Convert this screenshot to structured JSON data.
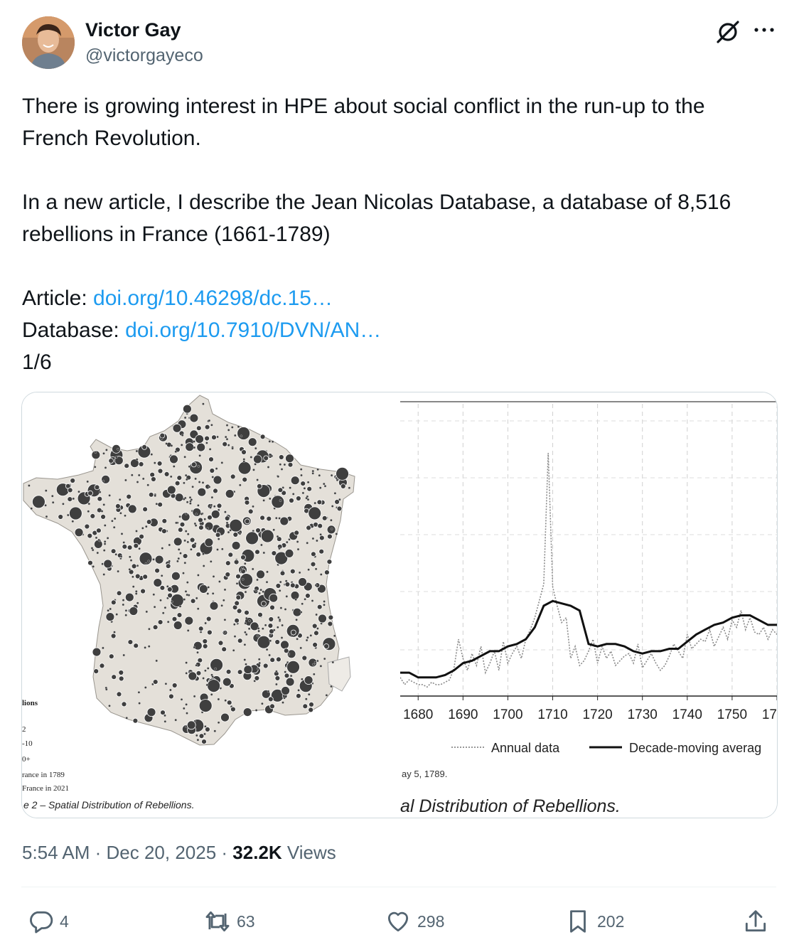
{
  "author": {
    "display_name": "Victor Gay",
    "handle": "@victorgayeco"
  },
  "tweet": {
    "line1": "There is growing interest in HPE about social conflict in the run-up to the French Revolution.",
    "line2": "In a new article, I describe the Jean Nicolas Database, a database of 8,516 rebellions in France (1661-1789)",
    "article_label": "Article: ",
    "article_link": "doi.org/10.46298/dc.15…",
    "database_label": "Database: ",
    "database_link": "doi.org/10.7910/DVN/AN…",
    "thread_count": "1/6"
  },
  "media": {
    "map": {
      "caption": "e 2 – Spatial Distribution of Rebellions.",
      "legend_title": "lions",
      "legend_items": [
        "2",
        "-10",
        "0+",
        "rance in 1789",
        "France in 2021"
      ]
    },
    "chart_caption": "al Distribution of Rebellions.",
    "chart_note": "ay 5, 1789."
  },
  "chart_data": {
    "type": "line",
    "title": "",
    "xlabel": "",
    "ylabel": "",
    "x_ticks": [
      "1680",
      "1690",
      "1700",
      "1710",
      "1720",
      "1730",
      "1740",
      "1750",
      "17"
    ],
    "xlim": [
      1676,
      1760
    ],
    "ylim": [
      0,
      100
    ],
    "grid": true,
    "legend": "bottom",
    "series": [
      {
        "name": "Annual data",
        "style": "dotted",
        "x": [
          1676,
          1677,
          1678,
          1679,
          1680,
          1681,
          1682,
          1683,
          1684,
          1685,
          1686,
          1687,
          1688,
          1689,
          1690,
          1691,
          1692,
          1693,
          1694,
          1695,
          1696,
          1697,
          1698,
          1699,
          1700,
          1701,
          1702,
          1703,
          1704,
          1705,
          1706,
          1707,
          1708,
          1709,
          1710,
          1711,
          1712,
          1713,
          1714,
          1715,
          1716,
          1717,
          1718,
          1719,
          1720,
          1721,
          1722,
          1723,
          1724,
          1725,
          1726,
          1727,
          1728,
          1729,
          1730,
          1731,
          1732,
          1733,
          1734,
          1735,
          1736,
          1737,
          1738,
          1739,
          1740,
          1741,
          1742,
          1743,
          1744,
          1745,
          1746,
          1747,
          1748,
          1749,
          1750,
          1751,
          1752,
          1753,
          1754,
          1755,
          1756,
          1757,
          1758,
          1759,
          1760
        ],
        "y": [
          6,
          3,
          5,
          4,
          3,
          3,
          2,
          4,
          3,
          3,
          4,
          5,
          10,
          22,
          14,
          9,
          16,
          11,
          19,
          8,
          12,
          17,
          9,
          21,
          12,
          16,
          19,
          14,
          22,
          26,
          31,
          38,
          45,
          100,
          44,
          36,
          29,
          31,
          14,
          19,
          11,
          13,
          17,
          22,
          12,
          19,
          14,
          17,
          11,
          13,
          15,
          16,
          12,
          20,
          10,
          13,
          16,
          12,
          9,
          11,
          15,
          20,
          17,
          14,
          24,
          18,
          20,
          22,
          21,
          26,
          19,
          23,
          27,
          22,
          30,
          27,
          34,
          26,
          31,
          25,
          24,
          27,
          22,
          26,
          24
        ]
      },
      {
        "name": "Decade-moving averag",
        "style": "solid",
        "x": [
          1676,
          1678,
          1680,
          1682,
          1684,
          1686,
          1688,
          1690,
          1692,
          1694,
          1696,
          1698,
          1700,
          1702,
          1704,
          1706,
          1708,
          1710,
          1712,
          1714,
          1716,
          1718,
          1720,
          1722,
          1724,
          1726,
          1728,
          1730,
          1732,
          1734,
          1736,
          1738,
          1740,
          1742,
          1744,
          1746,
          1748,
          1750,
          1752,
          1754,
          1756,
          1758,
          1760
        ],
        "y": [
          8,
          8,
          6,
          6,
          6,
          7,
          9,
          12,
          13,
          15,
          17,
          17,
          19,
          20,
          22,
          27,
          36,
          38,
          37,
          36,
          34,
          20,
          19,
          20,
          20,
          19,
          17,
          16,
          17,
          17,
          18,
          18,
          21,
          24,
          26,
          28,
          29,
          31,
          32,
          32,
          30,
          28,
          28
        ]
      }
    ]
  },
  "metadata": {
    "time": "5:54 AM",
    "separator": " · ",
    "date": "Dec 20, 2025",
    "views_count": "32.2K",
    "views_label": " Views"
  },
  "actions": {
    "replies": "4",
    "reposts": "63",
    "likes": "298",
    "bookmarks": "202"
  },
  "colors": {
    "link": "#1d9bf0",
    "secondary_text": "#536471",
    "map_land": "#e4e0d9",
    "dots": "#3f3f3f"
  }
}
